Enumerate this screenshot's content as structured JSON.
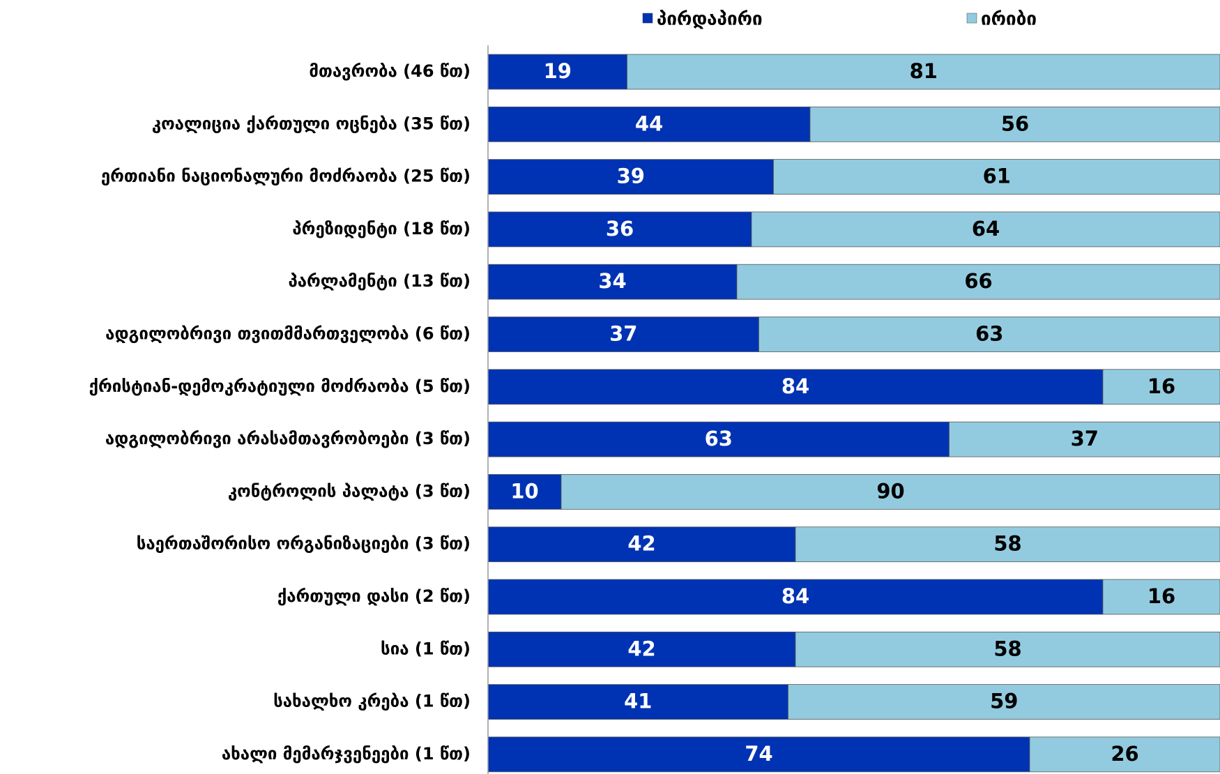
{
  "chart_data": {
    "type": "stacked-bar-horizontal",
    "categories": [
      "მთავრობა (46 წთ)",
      "კოალიცია ქართული ოცნება (35 წთ)",
      "ერთიანი ნაციონალური მოძრაობა (25 წთ)",
      "პრეზიდენტი (18 წთ)",
      "პარლამენტი (13 წთ)",
      "ადგილობრივი თვითმმართველობა (6 წთ)",
      "ქრისტიან-დემოკრატიული მოძრაობა (5 წთ)",
      "ადგილობრივი არასამთავრობოები (3 წთ)",
      "კონტროლის პალატა (3 წთ)",
      "საერთაშორისო ორგანიზაციები (3 წთ)",
      "ქართული დასი (2 წთ)",
      "სია (1 წთ)",
      "სახალხო კრება (1 წთ)",
      "ახალი მემარჯვენეები (1 წთ)"
    ],
    "series": [
      {
        "name": "პირდაპირი",
        "color": "#0033b3",
        "values": [
          19,
          44,
          39,
          36,
          34,
          37,
          84,
          63,
          10,
          42,
          84,
          42,
          41,
          74
        ]
      },
      {
        "name": "ირიბი",
        "color": "#92cbdf",
        "values": [
          81,
          56,
          61,
          64,
          66,
          63,
          16,
          37,
          90,
          58,
          16,
          58,
          59,
          26
        ]
      }
    ],
    "xlim": [
      0,
      100
    ],
    "legend": "top"
  }
}
